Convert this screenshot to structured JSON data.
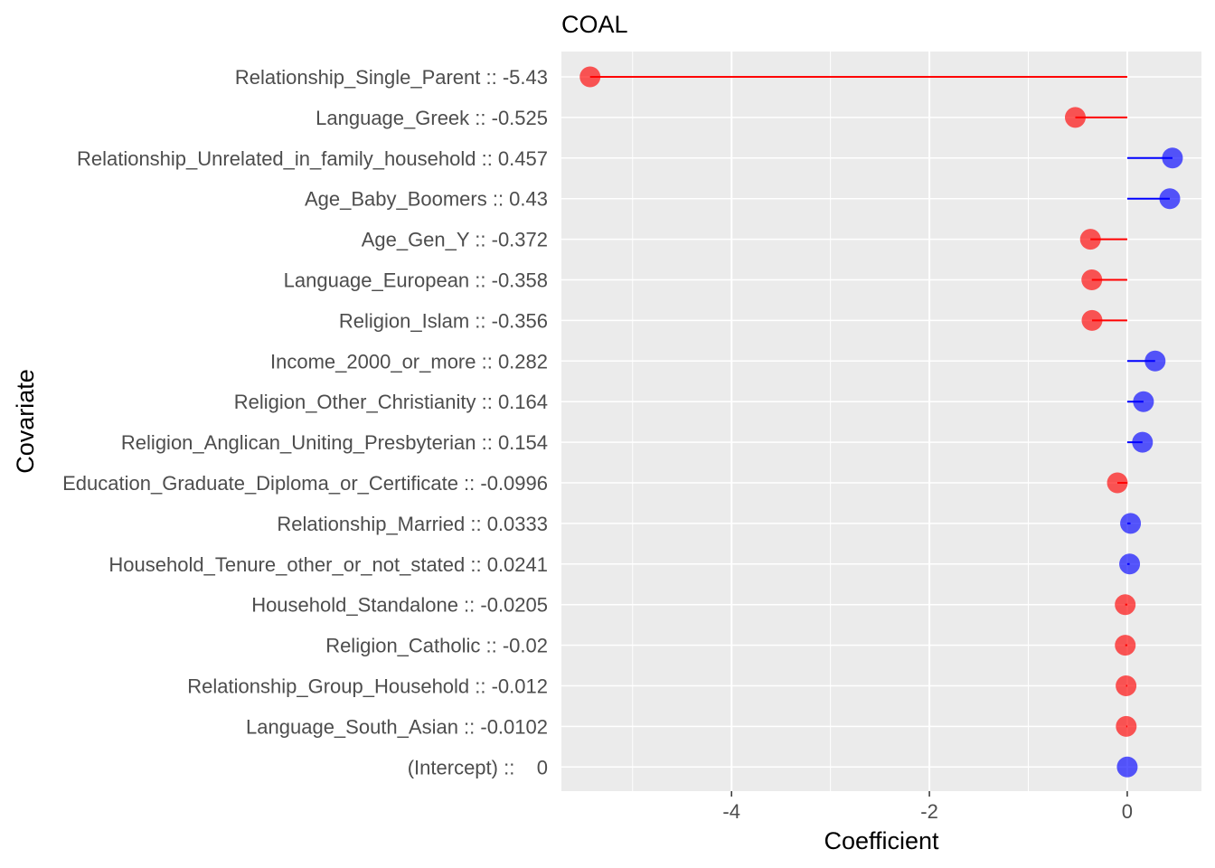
{
  "chart_data": {
    "type": "lollipop",
    "title": "COAL",
    "xlabel": "Coefficient",
    "ylabel": "Covariate",
    "xlim": [
      -5.72,
      0.75
    ],
    "x_ticks": [
      -4,
      -2,
      0
    ],
    "x_tick_labels": [
      "-4",
      "-2",
      "0"
    ],
    "grid": true,
    "colors": {
      "negative": "#ff0000",
      "positive": "#0000ff",
      "panel": "#ebebeb",
      "grid": "#ffffff"
    },
    "categories": [
      "Relationship_Single_Parent :: -5.43",
      "Language_Greek :: -0.525",
      "Relationship_Unrelated_in_family_household :: 0.457",
      "Age_Baby_Boomers :: 0.43",
      "Age_Gen_Y :: -0.372",
      "Language_European :: -0.358",
      "Religion_Islam :: -0.356",
      "Income_2000_or_more :: 0.282",
      "Religion_Other_Christianity :: 0.164",
      "Religion_Anglican_Uniting_Presbyterian :: 0.154",
      "Education_Graduate_Diploma_or_Certificate :: -0.0996",
      "Relationship_Married :: 0.0333",
      "Household_Tenure_other_or_not_stated :: 0.0241",
      "Household_Standalone :: -0.0205",
      "Religion_Catholic :: -0.02",
      "Relationship_Group_Household :: -0.012",
      "Language_South_Asian :: -0.0102",
      "(Intercept) ::    0"
    ],
    "values": [
      -5.43,
      -0.525,
      0.457,
      0.43,
      -0.372,
      -0.358,
      -0.356,
      0.282,
      0.164,
      0.154,
      -0.0996,
      0.0333,
      0.0241,
      -0.0205,
      -0.02,
      -0.012,
      -0.0102,
      0
    ]
  }
}
